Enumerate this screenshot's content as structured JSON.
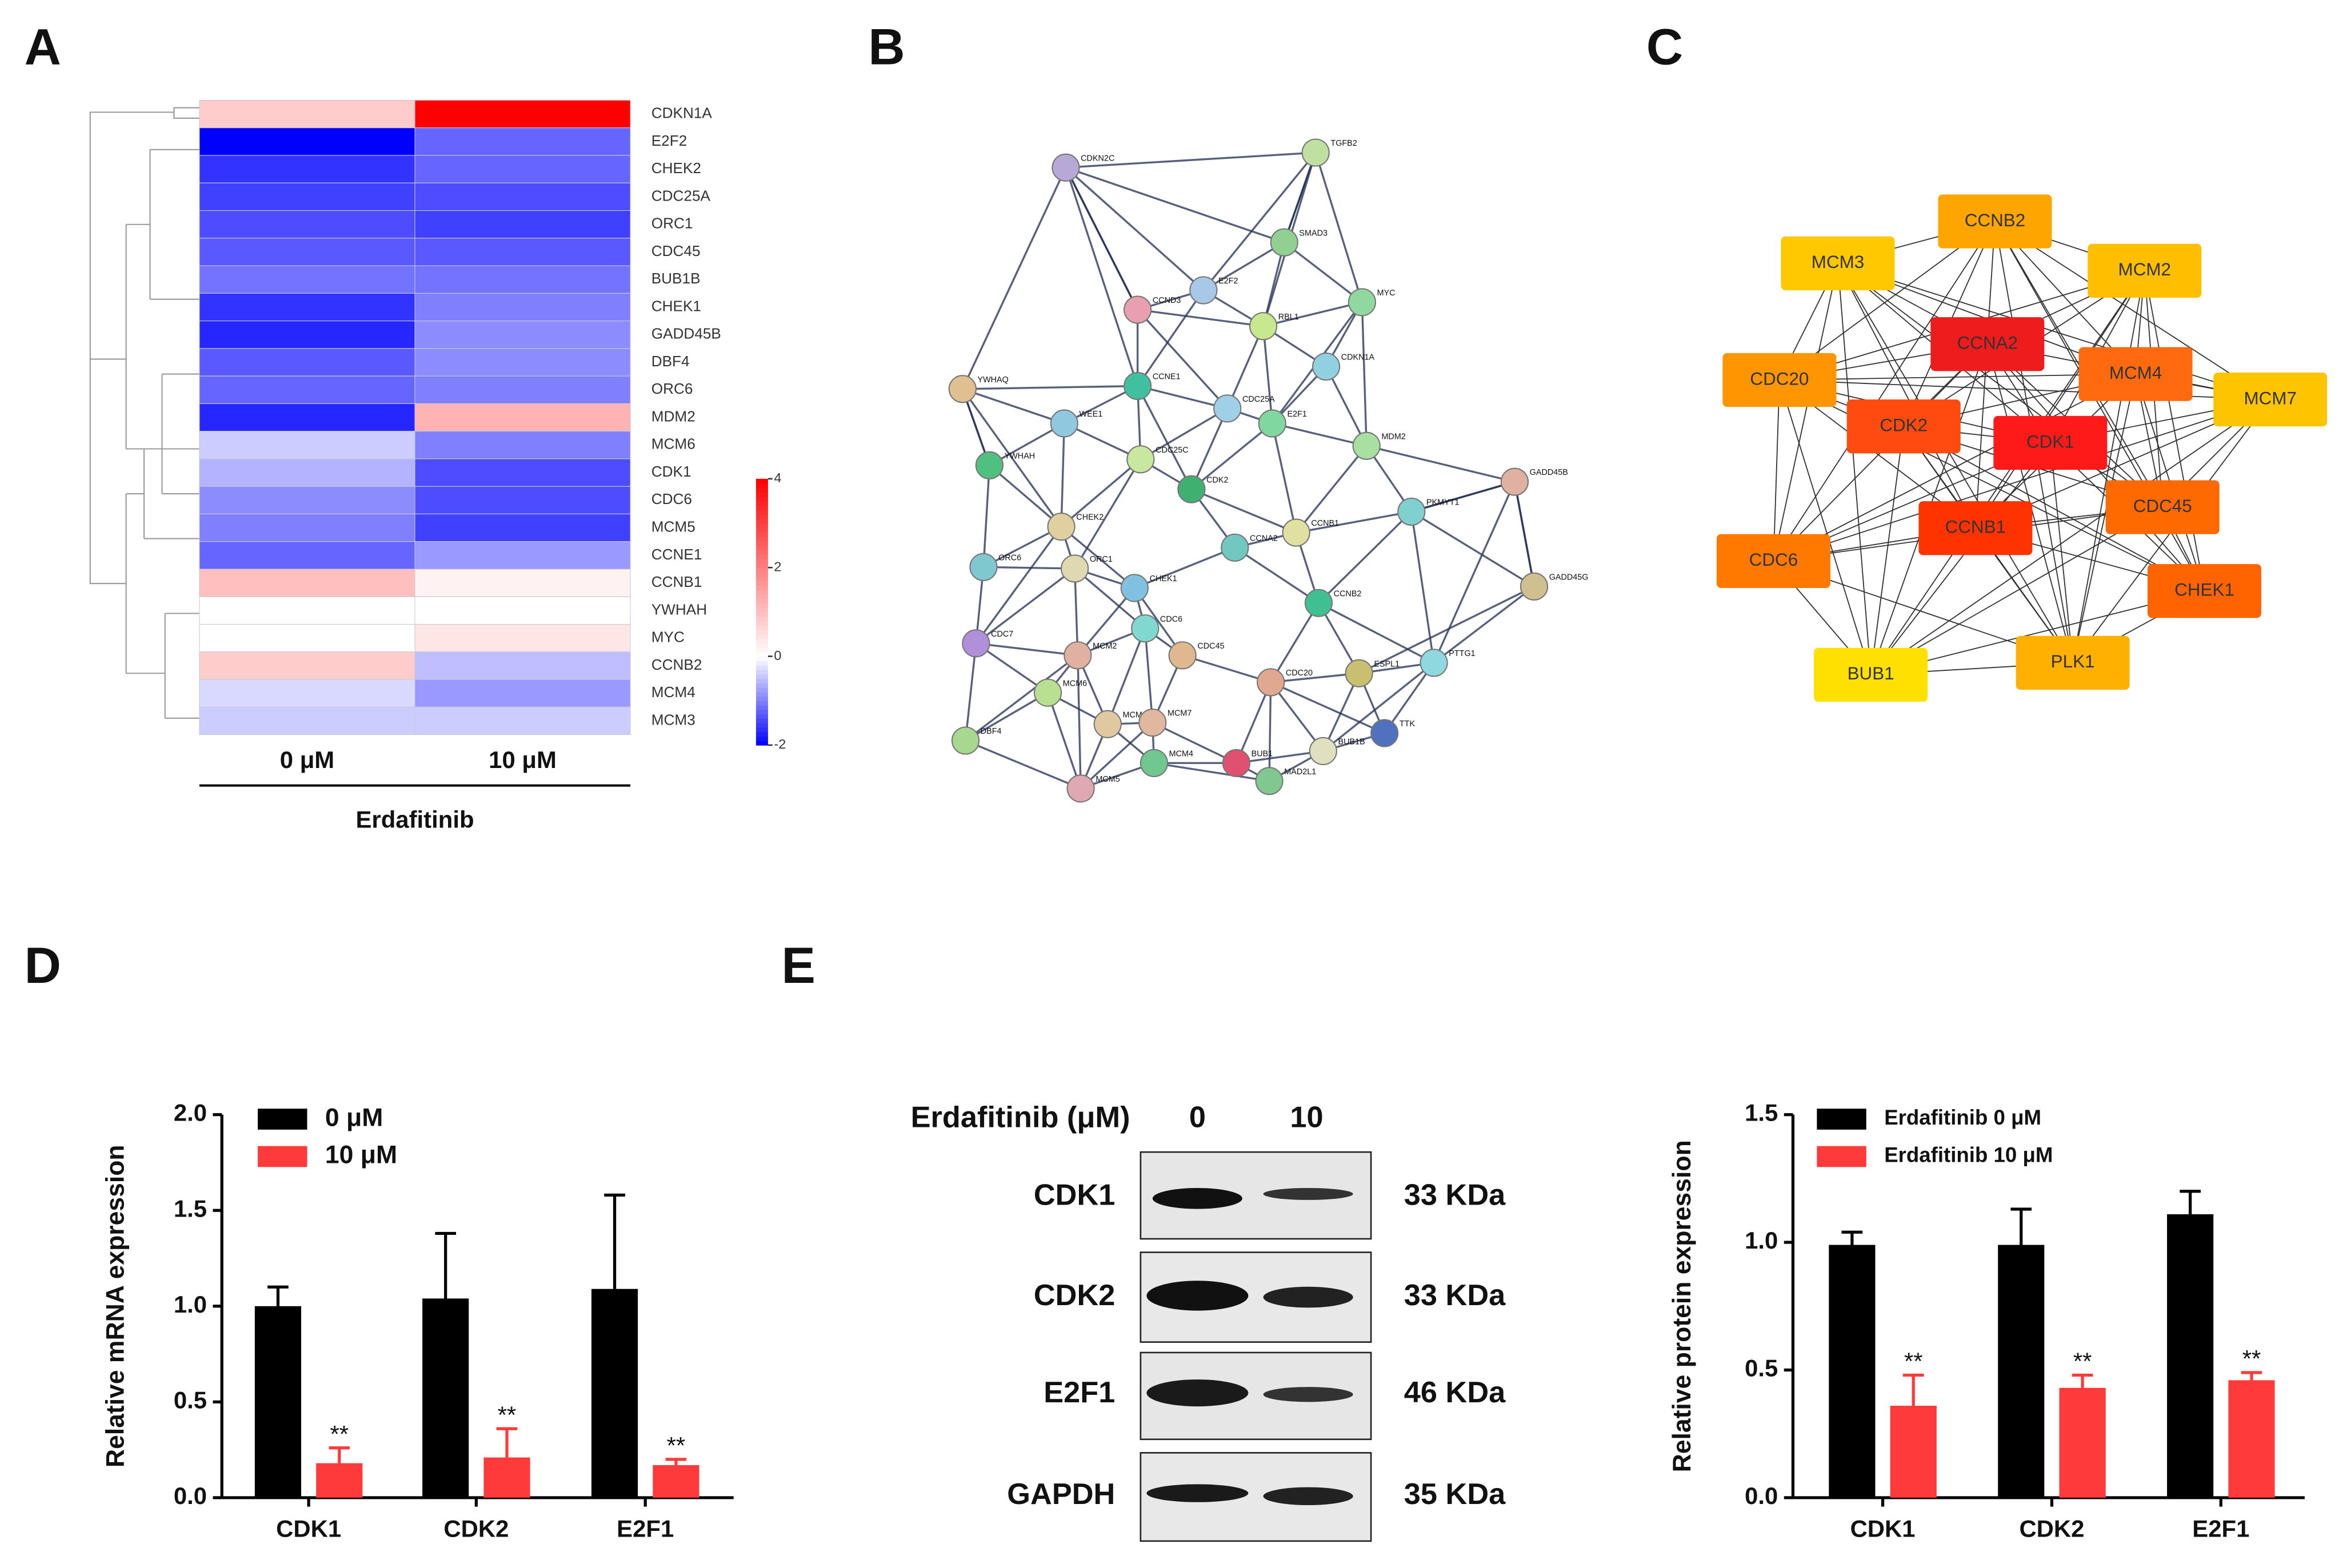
{
  "panel_labels": [
    "A",
    "B",
    "C",
    "D",
    "E"
  ],
  "chart_data": [
    {
      "type": "heatmap",
      "categories": [
        "CDKN1A",
        "E2F2",
        "CHEK2",
        "CDC25A",
        "ORC1",
        "CDC45",
        "BUB1B",
        "CHEK1",
        "GADD45B",
        "DBF4",
        "ORC6",
        "MDM2",
        "MCM6",
        "CDK1",
        "CDC6",
        "MCM5",
        "CCNE1",
        "CCNB1",
        "YWHAH",
        "MYC",
        "CCNB2",
        "MCM4",
        "MCM3"
      ],
      "columns": [
        "0 μM",
        "10 μM"
      ],
      "xlabel": "Erdafitinib",
      "values": [
        [
          0.8,
          4
        ],
        [
          -2,
          -1.2
        ],
        [
          -1.6,
          -1.2
        ],
        [
          -1.5,
          -1.4
        ],
        [
          -1.4,
          -1.5
        ],
        [
          -1.3,
          -1.3
        ],
        [
          -1.1,
          -1.1
        ],
        [
          -1.6,
          -1.0
        ],
        [
          -1.7,
          -0.9
        ],
        [
          -1.3,
          -0.9
        ],
        [
          -1.2,
          -1.0
        ],
        [
          -1.7,
          1.2
        ],
        [
          -0.4,
          -1.0
        ],
        [
          -0.6,
          -1.4
        ],
        [
          -0.9,
          -1.4
        ],
        [
          -1.0,
          -1.5
        ],
        [
          -1.2,
          -0.8
        ],
        [
          1.0,
          0.2
        ],
        [
          0,
          0
        ],
        [
          0,
          0.4
        ],
        [
          0.8,
          -0.5
        ],
        [
          -0.3,
          -0.8
        ],
        [
          -0.4,
          -0.4
        ]
      ],
      "clim": [
        -2,
        4
      ],
      "cticks": [
        4,
        2,
        0,
        -2
      ],
      "colormap": [
        {
          "value": -2,
          "color": "#0000ff"
        },
        {
          "value": 0,
          "color": "#ffffff"
        },
        {
          "value": 4,
          "color": "#ff0000"
        }
      ]
    },
    {
      "type": "bar",
      "categories": [
        "CDK1",
        "CDK2",
        "E2F1"
      ],
      "ylabel": "Relative mRNA expression",
      "series": [
        {
          "name": "0 μM",
          "color": "#000000",
          "values": [
            1.0,
            1.04,
            1.09
          ],
          "errors": [
            0.1,
            0.34,
            0.49
          ]
        },
        {
          "name": "10 μM",
          "color": "#ff3a3a",
          "values": [
            0.18,
            0.21,
            0.17
          ],
          "errors": [
            0.08,
            0.15,
            0.03
          ],
          "significance": [
            "**",
            "**",
            "**"
          ]
        }
      ],
      "ylim": [
        0,
        2
      ],
      "yticks": [
        {
          "value": 0,
          "label": "0.0"
        },
        0.5,
        {
          "value": 1,
          "label": "1.0"
        },
        1.5,
        {
          "value": 2,
          "label": "2.0"
        }
      ],
      "legend": "upper left"
    },
    {
      "type": "bar",
      "categories": [
        "CDK1",
        "CDK2",
        "E2F1"
      ],
      "ylabel": "Relative protein expression",
      "series": [
        {
          "name": "Erdafitinib 0 μM",
          "color": "#000000",
          "values": [
            0.99,
            0.99,
            1.11
          ],
          "errors": [
            0.05,
            0.14,
            0.09
          ]
        },
        {
          "name": "Erdafitinib 10 μM",
          "color": "#ff3a3a",
          "values": [
            0.36,
            0.43,
            0.46
          ],
          "errors": [
            0.12,
            0.05,
            0.03
          ],
          "significance": [
            "**",
            "**",
            "**"
          ]
        }
      ],
      "ylim": [
        0,
        1.5
      ],
      "yticks": [
        {
          "value": 0,
          "label": "0.0"
        },
        0.5,
        {
          "value": 1,
          "label": "1.0"
        },
        1.5
      ],
      "legend": "upper left"
    }
  ],
  "network_b": {
    "nodes": [
      {
        "label": "CDKN2C",
        "color": "#b8a8d8"
      },
      {
        "label": "TGFB2",
        "color": "#bfe0a0"
      },
      {
        "label": "SMAD3",
        "color": "#90d090"
      },
      {
        "label": "MYC",
        "color": "#90d8a0"
      },
      {
        "label": "CCND3",
        "color": "#e8a0b0"
      },
      {
        "label": "E2F2",
        "color": "#a8c8e8"
      },
      {
        "label": "RBL1",
        "color": "#c8e890"
      },
      {
        "label": "CDKN1A",
        "color": "#90d0e0"
      },
      {
        "label": "YWHAQ",
        "color": "#e0c090"
      },
      {
        "label": "CCNE1",
        "color": "#40c0a0"
      },
      {
        "label": "WEE1",
        "color": "#90c8e0"
      },
      {
        "label": "CDC25A",
        "color": "#a0d0e8"
      },
      {
        "label": "E2F1",
        "color": "#80d8a0"
      },
      {
        "label": "MDM2",
        "color": "#a8e0a0"
      },
      {
        "label": "YWHAH",
        "color": "#50c080"
      },
      {
        "label": "CDC25C",
        "color": "#c8e8a0"
      },
      {
        "label": "CDK2",
        "color": "#40b070"
      },
      {
        "label": "GADD45B",
        "color": "#e0b0a0"
      },
      {
        "label": "PKMYT1",
        "color": "#80d0d0"
      },
      {
        "label": "CHEK2",
        "color": "#e0d0a0"
      },
      {
        "label": "CCNA2",
        "color": "#70c8c0"
      },
      {
        "label": "CCNB1",
        "color": "#e0e0a0"
      },
      {
        "label": "ORC6",
        "color": "#80c8d0"
      },
      {
        "label": "ORC1",
        "color": "#e0d8b0"
      },
      {
        "label": "CHEK1",
        "color": "#80c0e0"
      },
      {
        "label": "CCNB2",
        "color": "#40c090"
      },
      {
        "label": "GADD45G",
        "color": "#d0c090"
      },
      {
        "label": "CDC6",
        "color": "#80d8d0"
      },
      {
        "label": "MCM2",
        "color": "#e0b0a0"
      },
      {
        "label": "CDC45",
        "color": "#e0b890"
      },
      {
        "label": "CDC20",
        "color": "#e0a890"
      },
      {
        "label": "ESPL1",
        "color": "#c8c070"
      },
      {
        "label": "PTTG1",
        "color": "#90d8e0"
      },
      {
        "label": "CDC7",
        "color": "#b090d8"
      },
      {
        "label": "MCM6",
        "color": "#b8e090"
      },
      {
        "label": "MCM3",
        "color": "#e0c8a0"
      },
      {
        "label": "MCM7",
        "color": "#e0b8a0"
      },
      {
        "label": "DBF4",
        "color": "#a8d890"
      },
      {
        "label": "MCM4",
        "color": "#70c890"
      },
      {
        "label": "MCM5",
        "color": "#e0a8b0"
      },
      {
        "label": "BUB1",
        "color": "#e05070"
      },
      {
        "label": "MAD2L1",
        "color": "#80c890"
      },
      {
        "label": "BUB1B",
        "color": "#e0e0c0"
      },
      {
        "label": "TTK",
        "color": "#5070c0"
      }
    ]
  },
  "network_c": {
    "nodes": [
      {
        "label": "CCNB2",
        "color": "#ffa500"
      },
      {
        "label": "MCM3",
        "color": "#ffc800"
      },
      {
        "label": "MCM2",
        "color": "#ffbf00"
      },
      {
        "label": "CCNA2",
        "color": "#ee1c1c"
      },
      {
        "label": "CDC20",
        "color": "#ff9500"
      },
      {
        "label": "MCM4",
        "color": "#ff6a10"
      },
      {
        "label": "MCM7",
        "color": "#ffc400"
      },
      {
        "label": "CDK2",
        "color": "#ff4a10"
      },
      {
        "label": "CDK1",
        "color": "#ff1a1a"
      },
      {
        "label": "CDC45",
        "color": "#ff6a00"
      },
      {
        "label": "CCNB1",
        "color": "#ff3300"
      },
      {
        "label": "CDC6",
        "color": "#ff7800"
      },
      {
        "label": "CHEK1",
        "color": "#ff6400"
      },
      {
        "label": "BUB1",
        "color": "#ffe000"
      },
      {
        "label": "PLK1",
        "color": "#ffb000"
      }
    ]
  },
  "blot": {
    "header": "Erdafitinib (μM)",
    "lanes": [
      "0",
      "10"
    ],
    "rows": [
      {
        "protein": "CDK1",
        "size": "33 KDa"
      },
      {
        "protein": "CDK2",
        "size": "33 KDa"
      },
      {
        "protein": "E2F1",
        "size": "46 KDa"
      },
      {
        "protein": "GAPDH",
        "size": "35 KDa"
      }
    ]
  }
}
